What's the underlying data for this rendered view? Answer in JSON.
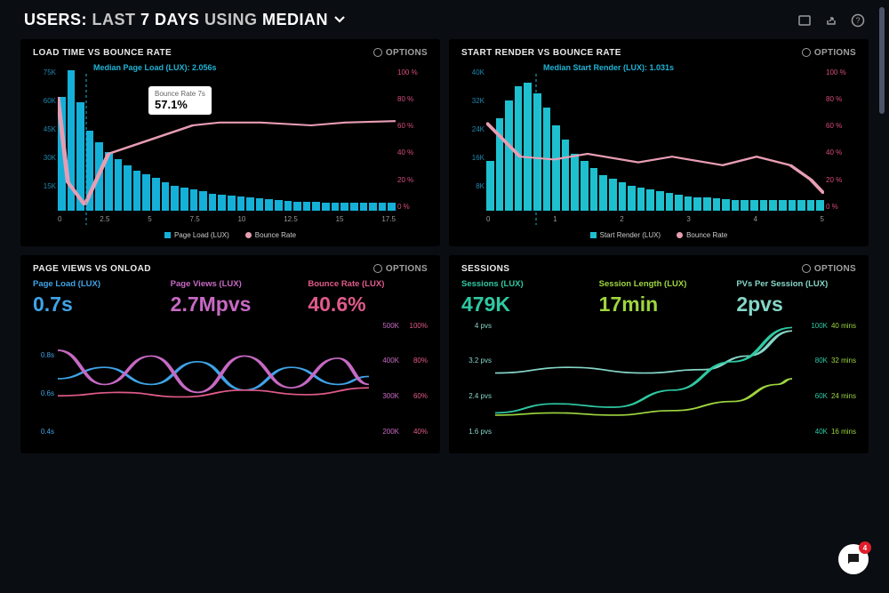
{
  "header": {
    "prefix": "USERS:",
    "mid1": "LAST",
    "bold1": "7 DAYS",
    "mid2": "USING",
    "bold2": "MEDIAN"
  },
  "options_label": "OPTIONS",
  "panel1": {
    "title": "LOAD TIME VS BOUNCE RATE",
    "median_label": "Median Page Load (LUX): 2.056s",
    "tooltip_label": "Bounce Rate 7s",
    "tooltip_value": "57.1%",
    "y_left": [
      "75K",
      "60K",
      "45K",
      "30K",
      "15K",
      ""
    ],
    "y_left_max": 75,
    "y_right": [
      "100 %",
      "80 %",
      "60 %",
      "40 %",
      "20 %",
      "0 %"
    ],
    "x": [
      "0",
      "2.5",
      "5",
      "7.5",
      "10",
      "12.5",
      "15",
      "17.5"
    ],
    "bars": [
      60,
      74,
      57,
      42,
      36,
      31,
      27,
      24,
      21,
      19,
      17,
      15,
      13,
      12,
      11,
      10,
      9,
      8.5,
      8,
      7.5,
      7,
      6.5,
      6,
      5.5,
      5,
      4.8,
      4.6,
      4.4,
      4.2,
      4,
      4,
      4,
      4,
      4,
      4,
      4
    ],
    "line_pts": [
      [
        0,
        20
      ],
      [
        3,
        80
      ],
      [
        8,
        96
      ],
      [
        15,
        60
      ],
      [
        25,
        52
      ],
      [
        40,
        40
      ],
      [
        48,
        38
      ],
      [
        60,
        38
      ],
      [
        75,
        40
      ],
      [
        85,
        38
      ],
      [
        100,
        37
      ]
    ],
    "bar_color": "#15b0d8",
    "line_color": "#e89db3",
    "legend1": "Page Load (LUX)",
    "legend2": "Bounce Rate"
  },
  "panel2": {
    "title": "START RENDER VS BOUNCE RATE",
    "median_label": "Median Start Render (LUX): 1.031s",
    "y_left": [
      "40K",
      "32K",
      "24K",
      "16K",
      "8K",
      ""
    ],
    "y_left_max": 40,
    "y_right": [
      "100 %",
      "80 %",
      "60 %",
      "40 %",
      "20 %",
      "0 %"
    ],
    "x": [
      "0",
      "1",
      "2",
      "3",
      "4",
      "5"
    ],
    "bars": [
      14,
      26,
      31,
      35,
      36,
      33,
      29,
      24,
      20,
      16,
      14,
      12,
      10,
      9,
      8,
      7,
      6.5,
      6,
      5.5,
      5,
      4.5,
      4,
      3.8,
      3.6,
      3.4,
      3.2,
      3,
      3,
      3,
      3,
      3,
      3,
      3,
      3,
      3,
      3
    ],
    "line_pts": [
      [
        0,
        38
      ],
      [
        10,
        62
      ],
      [
        20,
        64
      ],
      [
        30,
        60
      ],
      [
        45,
        66
      ],
      [
        55,
        62
      ],
      [
        70,
        68
      ],
      [
        80,
        62
      ],
      [
        90,
        68
      ],
      [
        96,
        78
      ],
      [
        100,
        88
      ]
    ],
    "bar_color": "#1ec0cf",
    "line_color": "#e89db3",
    "legend1": "Start Render (LUX)",
    "legend2": "Bounce Rate"
  },
  "panel3": {
    "title": "PAGE VIEWS VS ONLOAD",
    "stats": [
      {
        "label": "Page Load (LUX)",
        "value": "0.7s",
        "color": "#3fa4e8"
      },
      {
        "label": "Page Views (LUX)",
        "value": "2.7Mpvs",
        "color": "#c769c4"
      },
      {
        "label": "Bounce Rate (LUX)",
        "value": "40.6%",
        "color": "#e05a8a"
      }
    ],
    "y_left": [
      "",
      "0.8s",
      "0.6s",
      "0.4s"
    ],
    "y_r1": [
      "500K",
      "400K",
      "300K",
      "200K"
    ],
    "y_r2": [
      "100%",
      "80%",
      "60%",
      "40%"
    ],
    "colors": {
      "l": "#3fa4e8",
      "r1": "#c769c4",
      "r2": "#e05a8a"
    },
    "line_a": [
      [
        0,
        50
      ],
      [
        15,
        40
      ],
      [
        30,
        55
      ],
      [
        45,
        35
      ],
      [
        60,
        60
      ],
      [
        75,
        40
      ],
      [
        90,
        55
      ],
      [
        100,
        48
      ]
    ],
    "line_b": [
      [
        0,
        25
      ],
      [
        15,
        55
      ],
      [
        30,
        30
      ],
      [
        45,
        62
      ],
      [
        60,
        30
      ],
      [
        75,
        58
      ],
      [
        90,
        32
      ],
      [
        100,
        55
      ]
    ],
    "line_c": [
      [
        0,
        65
      ],
      [
        20,
        62
      ],
      [
        40,
        66
      ],
      [
        60,
        60
      ],
      [
        80,
        64
      ],
      [
        100,
        58
      ]
    ]
  },
  "panel4": {
    "title": "SESSIONS",
    "stats": [
      {
        "label": "Sessions (LUX)",
        "value": "479K",
        "color": "#2ec9a2"
      },
      {
        "label": "Session Length (LUX)",
        "value": "17min",
        "color": "#9ed63f"
      },
      {
        "label": "PVs Per Session (LUX)",
        "value": "2pvs",
        "color": "#85d6c8"
      }
    ],
    "y_left": [
      "4 pvs",
      "3.2 pvs",
      "2.4 pvs",
      "1.6 pvs"
    ],
    "y_r1": [
      "100K",
      "80K",
      "60K",
      "40K"
    ],
    "y_r2": [
      "40 mins",
      "32 mins",
      "24 mins",
      "16 mins"
    ],
    "colors": {
      "l": "#85d6c8",
      "r1": "#2ec9a2",
      "r2": "#9ed63f"
    },
    "line_a": [
      [
        0,
        45
      ],
      [
        25,
        40
      ],
      [
        50,
        45
      ],
      [
        70,
        42
      ],
      [
        85,
        30
      ],
      [
        100,
        8
      ]
    ],
    "line_b": [
      [
        0,
        80
      ],
      [
        20,
        72
      ],
      [
        40,
        75
      ],
      [
        60,
        60
      ],
      [
        80,
        35
      ],
      [
        100,
        5
      ]
    ],
    "line_c": [
      [
        0,
        82
      ],
      [
        20,
        80
      ],
      [
        40,
        82
      ],
      [
        60,
        78
      ],
      [
        80,
        70
      ],
      [
        95,
        55
      ],
      [
        100,
        50
      ]
    ]
  },
  "chat_count": "4"
}
